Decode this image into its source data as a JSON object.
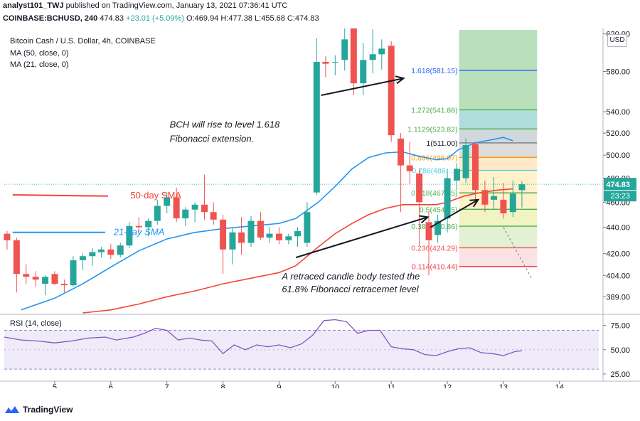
{
  "header": {
    "user": "analyst101_TWJ",
    "published": "published on TradingView.com, January 13, 2021 07:36:41 UTC",
    "symbol": "COINBASE:BCHUSD, 240",
    "last": "474.83",
    "change": "+23.01 (+5.09%)",
    "ohlc": "O:469.94 H:477.38 L:455.68 C:474.83"
  },
  "legend": {
    "title": "Bitcoin Cash / U.S. Dollar, 4h, COINBASE",
    "ma50": "MA (50, close, 0)",
    "ma21": "MA (21, close, 0)",
    "currency": "USD"
  },
  "annotations": {
    "fib_ext_line1": "BCH will rise to level 1.618",
    "fib_ext_line2": "Fibonacci extension.",
    "retrace_line1": "A retraced candle body tested the",
    "retrace_line2": "61.8% Fibonacci retracemet level",
    "sma50_label": "50-day SMA",
    "sma21_label": "21-day SMA"
  },
  "rsi": {
    "label": "RSI (14, close)",
    "ticks": [
      "75.00",
      "50.00",
      "25.00"
    ]
  },
  "price_badge": {
    "value": "474.83",
    "countdown": "23:23"
  },
  "footer": {
    "brand": "TradingView"
  },
  "colors": {
    "up": "#26a69a",
    "down": "#ef5350",
    "ma21": "#2196f3",
    "ma50": "#f44336",
    "rsi": "#7e57c2"
  },
  "chart_data": {
    "type": "candlestick",
    "title": "Bitcoin Cash / U.S. Dollar, 4h, COINBASE",
    "x_ticks": [
      "5",
      "6",
      "7",
      "8",
      "9",
      "10",
      "11",
      "12",
      "13",
      "14"
    ],
    "y_ticks": [
      620,
      580,
      540,
      520,
      500,
      480,
      460,
      440,
      420,
      404,
      389
    ],
    "y_tick_labels": [
      "620.00",
      "580.00",
      "540.00",
      "520.00",
      "500.00",
      "480.00",
      "460.00",
      "440.00",
      "420.00",
      "404.00",
      "389.00"
    ],
    "scale": "log",
    "ylim": [
      378,
      626
    ],
    "xlim": [
      4.1,
      14.7
    ],
    "candles": [
      {
        "t": 4.15,
        "o": 435,
        "h": 437,
        "l": 423,
        "c": 430
      },
      {
        "t": 4.32,
        "o": 430,
        "h": 432,
        "l": 392,
        "c": 405
      },
      {
        "t": 4.49,
        "o": 405,
        "h": 412,
        "l": 398,
        "c": 403
      },
      {
        "t": 4.66,
        "o": 403,
        "h": 407,
        "l": 396,
        "c": 401
      },
      {
        "t": 4.83,
        "o": 398,
        "h": 404,
        "l": 390,
        "c": 403
      },
      {
        "t": 5.0,
        "o": 405,
        "h": 407,
        "l": 397,
        "c": 398
      },
      {
        "t": 5.17,
        "o": 398,
        "h": 401,
        "l": 392,
        "c": 397
      },
      {
        "t": 5.33,
        "o": 397,
        "h": 418,
        "l": 396,
        "c": 415
      },
      {
        "t": 5.5,
        "o": 415,
        "h": 420,
        "l": 408,
        "c": 418
      },
      {
        "t": 5.67,
        "o": 418,
        "h": 424,
        "l": 411,
        "c": 421
      },
      {
        "t": 5.83,
        "o": 421,
        "h": 425,
        "l": 417,
        "c": 423
      },
      {
        "t": 6.0,
        "o": 423,
        "h": 427,
        "l": 416,
        "c": 419
      },
      {
        "t": 6.17,
        "o": 419,
        "h": 428,
        "l": 417,
        "c": 426
      },
      {
        "t": 6.33,
        "o": 426,
        "h": 444,
        "l": 424,
        "c": 441
      },
      {
        "t": 6.5,
        "o": 441,
        "h": 448,
        "l": 436,
        "c": 440
      },
      {
        "t": 6.67,
        "o": 440,
        "h": 447,
        "l": 433,
        "c": 445
      },
      {
        "t": 6.83,
        "o": 445,
        "h": 462,
        "l": 442,
        "c": 457
      },
      {
        "t": 7.0,
        "o": 457,
        "h": 468,
        "l": 451,
        "c": 464
      },
      {
        "t": 7.17,
        "o": 464,
        "h": 472,
        "l": 444,
        "c": 447
      },
      {
        "t": 7.33,
        "o": 447,
        "h": 456,
        "l": 441,
        "c": 454
      },
      {
        "t": 7.5,
        "o": 454,
        "h": 460,
        "l": 444,
        "c": 458
      },
      {
        "t": 7.67,
        "o": 458,
        "h": 483,
        "l": 446,
        "c": 452
      },
      {
        "t": 7.83,
        "o": 452,
        "h": 460,
        "l": 442,
        "c": 446
      },
      {
        "t": 8.0,
        "o": 446,
        "h": 450,
        "l": 405,
        "c": 423
      },
      {
        "t": 8.17,
        "o": 423,
        "h": 440,
        "l": 412,
        "c": 436
      },
      {
        "t": 8.33,
        "o": 436,
        "h": 448,
        "l": 419,
        "c": 428
      },
      {
        "t": 8.5,
        "o": 428,
        "h": 449,
        "l": 425,
        "c": 445
      },
      {
        "t": 8.67,
        "o": 445,
        "h": 452,
        "l": 430,
        "c": 432
      },
      {
        "t": 8.83,
        "o": 432,
        "h": 440,
        "l": 428,
        "c": 435
      },
      {
        "t": 9.0,
        "o": 435,
        "h": 440,
        "l": 427,
        "c": 430
      },
      {
        "t": 9.17,
        "o": 430,
        "h": 435,
        "l": 427,
        "c": 433
      },
      {
        "t": 9.33,
        "o": 433,
        "h": 440,
        "l": 425,
        "c": 437
      },
      {
        "t": 9.5,
        "o": 428,
        "h": 460,
        "l": 425,
        "c": 452
      },
      {
        "t": 9.67,
        "o": 468,
        "h": 615,
        "l": 466,
        "c": 590
      },
      {
        "t": 9.83,
        "o": 590,
        "h": 596,
        "l": 574,
        "c": 588
      },
      {
        "t": 10.0,
        "o": 590,
        "h": 597,
        "l": 576,
        "c": 590
      },
      {
        "t": 10.17,
        "o": 592,
        "h": 640,
        "l": 581,
        "c": 614
      },
      {
        "t": 10.33,
        "o": 628,
        "h": 640,
        "l": 556,
        "c": 568
      },
      {
        "t": 10.5,
        "o": 568,
        "h": 610,
        "l": 556,
        "c": 592
      },
      {
        "t": 10.67,
        "o": 592,
        "h": 625,
        "l": 578,
        "c": 598
      },
      {
        "t": 10.83,
        "o": 598,
        "h": 614,
        "l": 582,
        "c": 604
      },
      {
        "t": 11.0,
        "o": 607,
        "h": 612,
        "l": 512,
        "c": 518
      },
      {
        "t": 11.17,
        "o": 515,
        "h": 520,
        "l": 452,
        "c": 491
      },
      {
        "t": 11.33,
        "o": 491,
        "h": 512,
        "l": 475,
        "c": 486
      },
      {
        "t": 11.5,
        "o": 484,
        "h": 488,
        "l": 426,
        "c": 460
      },
      {
        "t": 11.67,
        "o": 444,
        "h": 452,
        "l": 404,
        "c": 430
      },
      {
        "t": 11.83,
        "o": 434,
        "h": 450,
        "l": 428,
        "c": 445
      },
      {
        "t": 12.0,
        "o": 447,
        "h": 488,
        "l": 436,
        "c": 480
      },
      {
        "t": 12.17,
        "o": 478,
        "h": 493,
        "l": 470,
        "c": 488
      },
      {
        "t": 12.33,
        "o": 480,
        "h": 515,
        "l": 476,
        "c": 509
      },
      {
        "t": 12.5,
        "o": 510,
        "h": 512,
        "l": 458,
        "c": 470
      },
      {
        "t": 12.67,
        "o": 470,
        "h": 478,
        "l": 452,
        "c": 458
      },
      {
        "t": 12.83,
        "o": 462,
        "h": 481,
        "l": 454,
        "c": 465
      },
      {
        "t": 13.0,
        "o": 462,
        "h": 476,
        "l": 447,
        "c": 451
      },
      {
        "t": 13.17,
        "o": 452,
        "h": 478,
        "l": 448,
        "c": 467
      },
      {
        "t": 13.33,
        "o": 469.94,
        "h": 477.38,
        "l": 455.68,
        "c": 474.83
      }
    ],
    "ma21": {
      "name": "MA (21, close, 0)",
      "points": [
        [
          4.4,
          380
        ],
        [
          5.0,
          388
        ],
        [
          5.5,
          398
        ],
        [
          6.0,
          410
        ],
        [
          6.5,
          422
        ],
        [
          7.0,
          431
        ],
        [
          7.5,
          436
        ],
        [
          8.0,
          439
        ],
        [
          8.5,
          441
        ],
        [
          9.0,
          443
        ],
        [
          9.3,
          447
        ],
        [
          9.7,
          460
        ],
        [
          10.0,
          473
        ],
        [
          10.3,
          488
        ],
        [
          10.6,
          498
        ],
        [
          10.9,
          502
        ],
        [
          11.2,
          503
        ],
        [
          11.5,
          499
        ],
        [
          11.8,
          496
        ],
        [
          12.0,
          497
        ],
        [
          12.2,
          505
        ],
        [
          12.5,
          511
        ],
        [
          12.8,
          514
        ],
        [
          13.0,
          516
        ],
        [
          13.17,
          513
        ]
      ]
    },
    "ma50": {
      "name": "MA (50, close, 0)",
      "points": [
        [
          5.5,
          378
        ],
        [
          6.0,
          380
        ],
        [
          6.5,
          384
        ],
        [
          7.0,
          389
        ],
        [
          7.5,
          393
        ],
        [
          8.0,
          398
        ],
        [
          8.5,
          402
        ],
        [
          9.0,
          406
        ],
        [
          9.3,
          411
        ],
        [
          9.7,
          425
        ],
        [
          10.0,
          435
        ],
        [
          10.3,
          443
        ],
        [
          10.6,
          450
        ],
        [
          10.9,
          455
        ],
        [
          11.2,
          458
        ],
        [
          11.5,
          458
        ],
        [
          11.8,
          458
        ],
        [
          12.0,
          460
        ],
        [
          12.3,
          465
        ],
        [
          12.6,
          468
        ],
        [
          12.9,
          470
        ],
        [
          13.17,
          471
        ]
      ]
    },
    "fibonacci": [
      {
        "label": "1.618(581.15)",
        "value": 581.15
      },
      {
        "label": "1.272(541.88)",
        "value": 541.88
      },
      {
        "label": "1.1129(523.82)",
        "value": 523.82
      },
      {
        "label": "1(511.00)",
        "value": 511.0
      },
      {
        "label": "0.886(498.07)",
        "value": 498.07
      },
      {
        "label": "0.786(486.…)",
        "value": 486.7
      },
      {
        "label": "0.618(467.65)",
        "value": 467.65
      },
      {
        "label": "0.5(454.25)",
        "value": 454.25
      },
      {
        "label": "0.382(440.86)",
        "value": 440.86
      },
      {
        "label": "0.236(424.29)",
        "value": 424.29
      },
      {
        "label": "0.114(410.44)",
        "value": 410.44
      }
    ],
    "rsi_points": [
      [
        4.1,
        63
      ],
      [
        4.4,
        60
      ],
      [
        4.7,
        59
      ],
      [
        5.0,
        57
      ],
      [
        5.3,
        59
      ],
      [
        5.6,
        62
      ],
      [
        5.9,
        63
      ],
      [
        6.1,
        60
      ],
      [
        6.4,
        63
      ],
      [
        6.6,
        67
      ],
      [
        6.8,
        72
      ],
      [
        7.0,
        70
      ],
      [
        7.2,
        60
      ],
      [
        7.4,
        62
      ],
      [
        7.6,
        60
      ],
      [
        7.8,
        59
      ],
      [
        8.0,
        46
      ],
      [
        8.2,
        55
      ],
      [
        8.4,
        50
      ],
      [
        8.6,
        55
      ],
      [
        8.8,
        53
      ],
      [
        9.0,
        55
      ],
      [
        9.2,
        52
      ],
      [
        9.4,
        56
      ],
      [
        9.6,
        65
      ],
      [
        9.8,
        80
      ],
      [
        10.0,
        81
      ],
      [
        10.2,
        79
      ],
      [
        10.4,
        67
      ],
      [
        10.6,
        70
      ],
      [
        10.8,
        70
      ],
      [
        11.0,
        53
      ],
      [
        11.2,
        51
      ],
      [
        11.4,
        50
      ],
      [
        11.6,
        45
      ],
      [
        11.8,
        44
      ],
      [
        12.0,
        48
      ],
      [
        12.2,
        51
      ],
      [
        12.4,
        52
      ],
      [
        12.6,
        47
      ],
      [
        12.8,
        46
      ],
      [
        13.0,
        44
      ],
      [
        13.2,
        48
      ],
      [
        13.33,
        49
      ]
    ]
  }
}
